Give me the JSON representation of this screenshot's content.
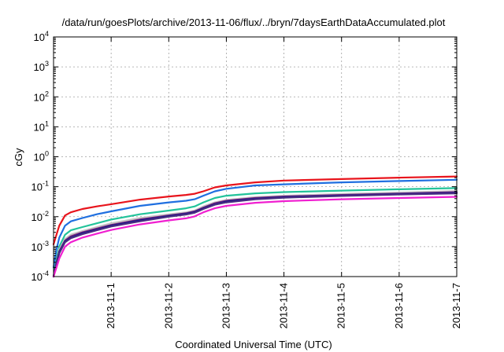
{
  "chart_data": {
    "type": "line",
    "title": "/data/run/goesPlots/archive/2013-11-06/flux/../bryn/7daysEarthDataAccumulated.plot",
    "xlabel": "Coordinated Universal Time (UTC)",
    "ylabel": "cGy",
    "yscale": "log",
    "ylim": [
      0.0001,
      10000
    ],
    "xlim": [
      0,
      7
    ],
    "x_tick_labels": [
      "2013-11-1",
      "2013-11-2",
      "2013-11-3",
      "2013-11-4",
      "2013-11-5",
      "2013-11-6",
      "2013-11-7"
    ],
    "x_tick_positions": [
      1,
      2,
      3,
      4,
      5,
      6,
      7
    ],
    "y_ticks": [
      {
        "value": 0.0001,
        "base": "10",
        "exp": "-4"
      },
      {
        "value": 0.001,
        "base": "10",
        "exp": "-3"
      },
      {
        "value": 0.01,
        "base": "10",
        "exp": "-2"
      },
      {
        "value": 0.1,
        "base": "10",
        "exp": "-1"
      },
      {
        "value": 1,
        "base": "10",
        "exp": "0"
      },
      {
        "value": 10,
        "base": "10",
        "exp": "1"
      },
      {
        "value": 100,
        "base": "10",
        "exp": "2"
      },
      {
        "value": 1000,
        "base": "10",
        "exp": "3"
      },
      {
        "value": 10000,
        "base": "10",
        "exp": "4"
      }
    ],
    "grid": true,
    "x": [
      0,
      0.05,
      0.1,
      0.2,
      0.3,
      0.5,
      0.75,
      1.0,
      1.5,
      2.0,
      2.3,
      2.45,
      2.6,
      2.8,
      3.0,
      3.5,
      4.0,
      5.0,
      6.0,
      7.0
    ],
    "series": [
      {
        "color": "#e8141c",
        "values": [
          0.0012,
          0.0025,
          0.005,
          0.011,
          0.014,
          0.018,
          0.022,
          0.026,
          0.037,
          0.047,
          0.053,
          0.058,
          0.07,
          0.095,
          0.11,
          0.14,
          0.16,
          0.18,
          0.2,
          0.22
        ]
      },
      {
        "color": "#1f6fe0",
        "values": [
          0.0002,
          0.0008,
          0.002,
          0.005,
          0.007,
          0.009,
          0.012,
          0.015,
          0.023,
          0.03,
          0.034,
          0.038,
          0.05,
          0.07,
          0.085,
          0.11,
          0.12,
          0.14,
          0.155,
          0.17
        ]
      },
      {
        "color": "#22c39a",
        "values": [
          0.0001,
          0.0004,
          0.001,
          0.0025,
          0.0035,
          0.0045,
          0.006,
          0.008,
          0.012,
          0.016,
          0.019,
          0.022,
          0.03,
          0.042,
          0.05,
          0.06,
          0.066,
          0.074,
          0.082,
          0.09
        ]
      },
      {
        "color": "#c4c4c4",
        "values": [
          0.0001,
          0.0003,
          0.0008,
          0.0018,
          0.0025,
          0.0033,
          0.0045,
          0.006,
          0.009,
          0.012,
          0.014,
          0.016,
          0.022,
          0.03,
          0.036,
          0.045,
          0.05,
          0.057,
          0.064,
          0.072
        ]
      },
      {
        "color": "#7a1f7a",
        "values": [
          0.0001,
          0.0003,
          0.0007,
          0.0016,
          0.0022,
          0.003,
          0.004,
          0.0053,
          0.008,
          0.011,
          0.013,
          0.015,
          0.02,
          0.028,
          0.034,
          0.042,
          0.047,
          0.053,
          0.059,
          0.066
        ]
      },
      {
        "color": "#1a1a8a",
        "values": [
          0.0001,
          0.00028,
          0.00065,
          0.0015,
          0.002,
          0.0028,
          0.0037,
          0.005,
          0.0075,
          0.0105,
          0.0125,
          0.0142,
          0.019,
          0.026,
          0.032,
          0.04,
          0.045,
          0.051,
          0.057,
          0.063
        ]
      },
      {
        "color": "#4a2c82",
        "values": [
          0.0001,
          0.00026,
          0.0006,
          0.0014,
          0.0019,
          0.0026,
          0.0035,
          0.0047,
          0.007,
          0.01,
          0.0118,
          0.0135,
          0.018,
          0.025,
          0.03,
          0.038,
          0.043,
          0.049,
          0.055,
          0.06
        ]
      },
      {
        "color": "#f01fd0",
        "values": [
          0.0001,
          0.0002,
          0.0004,
          0.001,
          0.0014,
          0.002,
          0.0027,
          0.0036,
          0.0055,
          0.0075,
          0.0088,
          0.0102,
          0.014,
          0.019,
          0.023,
          0.029,
          0.033,
          0.038,
          0.042,
          0.046
        ]
      }
    ]
  }
}
